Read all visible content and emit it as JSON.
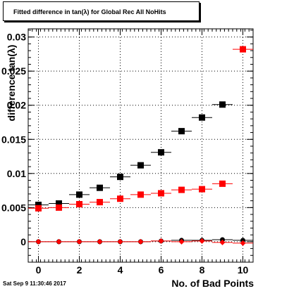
{
  "title": "Fitted difference in tan(λ) for Global Rec All NoHits",
  "timestamp": "Sat Sep  9 11:30:46 2017",
  "chart_data": {
    "type": "scatter",
    "title": "Fitted difference in tan(λ) for Global Rec All NoHits",
    "xlabel": "No. of Bad Points",
    "ylabel": "difference tan(λ)",
    "xlim": [
      -0.5,
      10.5
    ],
    "ylim": [
      -0.003,
      0.0312
    ],
    "grid": true,
    "x_ticks": [
      0,
      2,
      4,
      6,
      8,
      10
    ],
    "x_tick_labels": [
      "0",
      "2",
      "4",
      "6",
      "8",
      "10"
    ],
    "y_ticks": [
      0,
      0.005,
      0.01,
      0.015,
      0.02,
      0.025,
      0.03
    ],
    "y_tick_labels": [
      "0",
      "0.005",
      "0.01",
      "0.015",
      "0.02",
      "0.025",
      "0.03"
    ],
    "series": [
      {
        "marker": "square",
        "color": "#000000",
        "x": [
          0,
          1,
          2,
          3,
          4,
          5,
          6,
          7,
          8,
          9
        ],
        "y": [
          0.0054,
          0.0056,
          0.0069,
          0.0079,
          0.0095,
          0.0112,
          0.0131,
          0.0162,
          0.0182,
          0.0201
        ]
      },
      {
        "marker": "square",
        "color": "#ff0000",
        "x": [
          0,
          1,
          2,
          3,
          4,
          5,
          6,
          7,
          8,
          9,
          10
        ],
        "y": [
          0.0049,
          0.005,
          0.0055,
          0.0058,
          0.0063,
          0.0069,
          0.0071,
          0.0076,
          0.0077,
          0.0085,
          0.0282
        ]
      },
      {
        "marker": "circle",
        "color": "#000000",
        "x": [
          0,
          1,
          2,
          3,
          4,
          5,
          6,
          7,
          8,
          9,
          10
        ],
        "y": [
          0.0,
          0.0,
          0.0,
          0.0,
          0.0,
          0.0,
          0.0001,
          0.0002,
          0.0002,
          0.0003,
          0.0002
        ]
      },
      {
        "marker": "diamond",
        "color": "#ff0000",
        "x": [
          0,
          1,
          2,
          3,
          4,
          5,
          6,
          7,
          8,
          9,
          10
        ],
        "y": [
          0.0,
          0.0,
          0.0,
          0.0,
          0.0,
          0.0,
          0.0001,
          0.0,
          0.0001,
          -0.0001,
          -0.0002
        ]
      }
    ]
  }
}
